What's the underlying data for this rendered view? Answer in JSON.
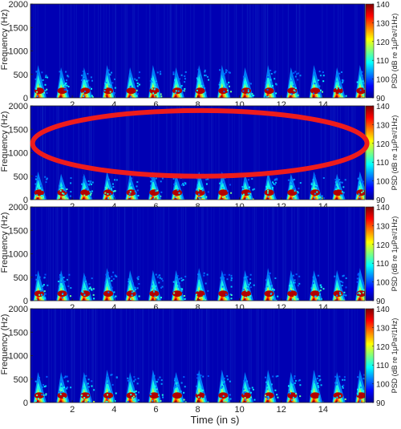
{
  "figure": {
    "xlabel": "Time (in s)",
    "ylabel": "Frequency (Hz)",
    "colorbar_label": "PSD (dB re 1μPa²/1Hz)"
  },
  "chart_data": [
    {
      "type": "heatmap",
      "panel": 1,
      "xlabel": "",
      "ylabel": "Frequency (Hz)",
      "xlim": [
        0,
        16
      ],
      "ylim": [
        0,
        2000
      ],
      "x_ticks": [
        2,
        4,
        6,
        8,
        10,
        12,
        14
      ],
      "y_ticks": [
        0,
        500,
        1000,
        1500,
        2000
      ],
      "colorbar": {
        "label": "PSD (dB re 1μPa²/1Hz)",
        "range": [
          90,
          140
        ],
        "ticks": [
          90,
          100,
          110,
          120,
          130,
          140
        ],
        "colormap": "jet"
      },
      "pulse_times": [
        0.3,
        1.4,
        2.5,
        3.6,
        4.7,
        5.8,
        6.9,
        8.0,
        9.1,
        10.2,
        11.3,
        12.4,
        13.5,
        14.6,
        15.7
      ],
      "pulse_peak_frequency": [
        150,
        150,
        150,
        150,
        150,
        150,
        150,
        150,
        150,
        150,
        150,
        150,
        150,
        150,
        150
      ],
      "pulse_max_extent_hz": [
        700,
        650,
        650,
        700,
        650,
        700,
        650,
        700,
        700,
        650,
        700,
        650,
        700,
        650,
        700
      ],
      "background_db": 92,
      "peak_db": 140
    },
    {
      "type": "heatmap",
      "panel": 2,
      "xlabel": "",
      "ylabel": "Frequency (Hz)",
      "xlim": [
        0,
        16
      ],
      "ylim": [
        0,
        2000
      ],
      "x_ticks": [
        2,
        4,
        6,
        8,
        10,
        12,
        14
      ],
      "y_ticks": [
        0,
        500,
        1000,
        1500,
        2000
      ],
      "colorbar": {
        "label": "PSD (dB re 1μPa²/1Hz)",
        "range": [
          90,
          140
        ],
        "ticks": [
          90,
          100,
          110,
          120,
          130,
          140
        ],
        "colormap": "jet"
      },
      "pulse_times": [
        0.3,
        1.4,
        2.5,
        3.6,
        4.7,
        5.8,
        6.9,
        8.0,
        9.1,
        10.2,
        11.3,
        12.4,
        13.5,
        14.6,
        15.7
      ],
      "pulse_peak_frequency": [
        150,
        150,
        150,
        150,
        150,
        150,
        150,
        150,
        150,
        150,
        150,
        150,
        150,
        150,
        150
      ],
      "pulse_max_extent_hz": [
        600,
        550,
        550,
        600,
        550,
        600,
        550,
        600,
        600,
        550,
        600,
        550,
        600,
        550,
        600
      ],
      "background_db": 92,
      "peak_db": 140,
      "annotation": {
        "shape": "ellipse",
        "color": "#ee1c1c",
        "x_center": 8.1,
        "y_center": 1200,
        "x_radius": 8.0,
        "y_radius": 700
      }
    },
    {
      "type": "heatmap",
      "panel": 3,
      "xlabel": "",
      "ylabel": "Frequency (Hz)",
      "xlim": [
        0,
        16
      ],
      "ylim": [
        0,
        2000
      ],
      "x_ticks": [
        2,
        4,
        6,
        8,
        10,
        12,
        14
      ],
      "y_ticks": [
        0,
        500,
        1000,
        1500,
        2000
      ],
      "colorbar": {
        "label": "PSD (dB re 1μPa²/1Hz)",
        "range": [
          90,
          140
        ],
        "ticks": [
          90,
          100,
          110,
          120,
          130,
          140
        ],
        "colormap": "jet"
      },
      "pulse_times": [
        0.3,
        1.4,
        2.5,
        3.6,
        4.7,
        5.8,
        6.9,
        8.0,
        9.1,
        10.2,
        11.3,
        12.4,
        13.5,
        14.6,
        15.7
      ],
      "pulse_peak_frequency": [
        150,
        150,
        150,
        150,
        150,
        150,
        150,
        150,
        150,
        150,
        150,
        150,
        150,
        150,
        150
      ],
      "pulse_max_extent_hz": [
        650,
        650,
        600,
        700,
        650,
        650,
        650,
        700,
        650,
        650,
        700,
        650,
        650,
        650,
        700
      ],
      "background_db": 92,
      "peak_db": 140
    },
    {
      "type": "heatmap",
      "panel": 4,
      "xlabel": "Time (in s)",
      "ylabel": "Frequency (Hz)",
      "xlim": [
        0,
        16
      ],
      "ylim": [
        0,
        2000
      ],
      "x_ticks": [
        2,
        4,
        6,
        8,
        10,
        12,
        14
      ],
      "y_ticks": [
        0,
        500,
        1000,
        1500,
        2000
      ],
      "colorbar": {
        "label": "PSD (dB re 1μPa²/1Hz)",
        "range": [
          90,
          140
        ],
        "ticks": [
          90,
          100,
          110,
          120,
          130,
          140
        ],
        "colormap": "jet"
      },
      "pulse_times": [
        0.3,
        1.4,
        2.5,
        3.6,
        4.7,
        5.8,
        6.9,
        8.0,
        9.1,
        10.2,
        11.3,
        12.4,
        13.5,
        14.6,
        15.7
      ],
      "pulse_peak_frequency": [
        150,
        150,
        150,
        150,
        150,
        150,
        150,
        150,
        150,
        150,
        150,
        150,
        150,
        150,
        150
      ],
      "pulse_max_extent_hz": [
        650,
        650,
        650,
        700,
        650,
        700,
        650,
        700,
        700,
        650,
        700,
        650,
        700,
        650,
        700
      ],
      "background_db": 92,
      "peak_db": 140
    }
  ]
}
